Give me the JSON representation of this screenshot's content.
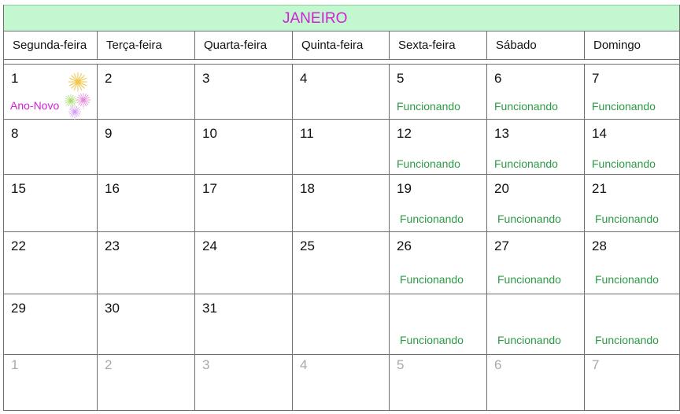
{
  "calendar": {
    "month": "JANEIRO",
    "weekdays": [
      "Segunda-feira",
      "Terça-feira",
      "Quarta-feira",
      "Quinta-feira",
      "Sexta-feira",
      "Sábado",
      "Domingo"
    ],
    "weeks": [
      [
        {
          "day": "1",
          "holiday": "Ano-Novo"
        },
        {
          "day": "2"
        },
        {
          "day": "3"
        },
        {
          "day": "4"
        },
        {
          "day": "5",
          "note": "Funcionando"
        },
        {
          "day": "6",
          "note": "Funcionando"
        },
        {
          "day": "7",
          "note": "Funcionando"
        }
      ],
      [
        {
          "day": "8"
        },
        {
          "day": "9"
        },
        {
          "day": "10"
        },
        {
          "day": "11"
        },
        {
          "day": "12",
          "note": "Funcionando"
        },
        {
          "day": "13",
          "note": "Funcionando"
        },
        {
          "day": "14",
          "note": "Funcionando"
        }
      ],
      [
        {
          "day": "15"
        },
        {
          "day": "16"
        },
        {
          "day": "17"
        },
        {
          "day": "18"
        },
        {
          "day": "19",
          "note": "Funcionando"
        },
        {
          "day": "20",
          "note": "Funcionando"
        },
        {
          "day": "21",
          "note": "Funcionando"
        }
      ],
      [
        {
          "day": "22"
        },
        {
          "day": "23"
        },
        {
          "day": "24"
        },
        {
          "day": "25"
        },
        {
          "day": "26",
          "note": "Funcionando"
        },
        {
          "day": "27",
          "note": "Funcionando"
        },
        {
          "day": "28",
          "note": "Funcionando"
        }
      ],
      [
        {
          "day": "29"
        },
        {
          "day": "30"
        },
        {
          "day": "31"
        },
        {
          "day": ""
        },
        {
          "day": "",
          "note": "Funcionando"
        },
        {
          "day": "",
          "note": "Funcionando"
        },
        {
          "day": "",
          "note": "Funcionando"
        }
      ],
      [
        {
          "day": "1",
          "other": true
        },
        {
          "day": "2",
          "other": true
        },
        {
          "day": "3",
          "other": true
        },
        {
          "day": "4",
          "other": true
        },
        {
          "day": "5",
          "other": true
        },
        {
          "day": "6",
          "other": true
        },
        {
          "day": "7",
          "other": true
        }
      ]
    ],
    "fireworks_icon": "fireworks-icon",
    "colors": {
      "title_bg": "#c2f7d0",
      "title_text": "#d21fd7",
      "note_text": "#2b9a45",
      "holiday_text": "#d21fd7",
      "other_month_text": "#a9a9a9"
    }
  }
}
